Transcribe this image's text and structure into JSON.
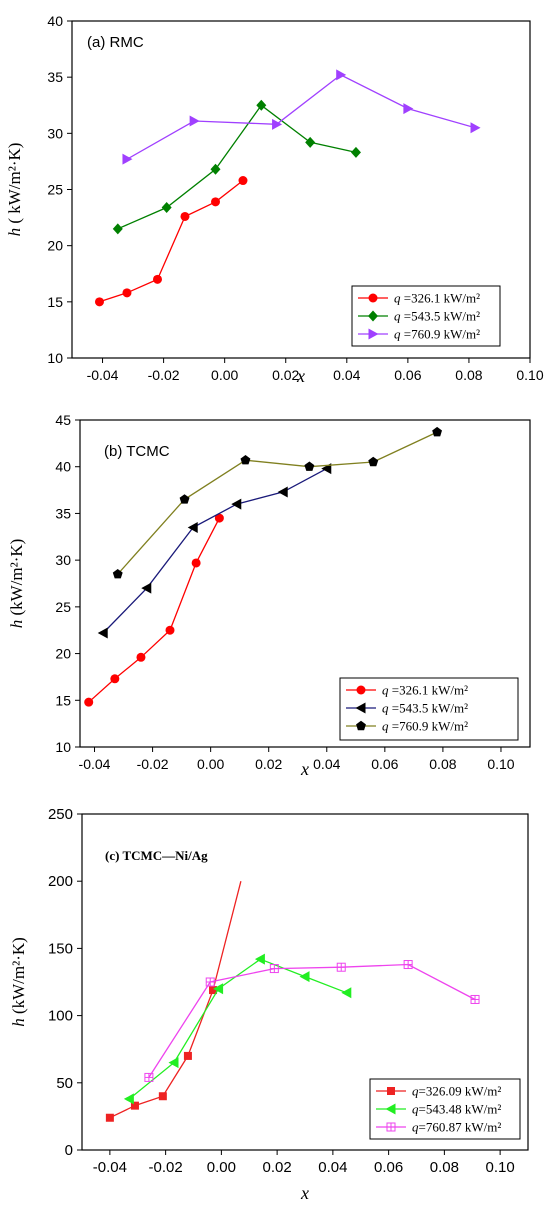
{
  "chart_data": [
    {
      "type": "line",
      "panel_label": "(a) RMC",
      "ylabel_var": "h",
      "ylabel_unit": " ( kW/m²·K)",
      "xlabel": "x",
      "xlim": [
        -0.05,
        0.1
      ],
      "ylim": [
        10,
        40
      ],
      "xticks": [
        "-0.04",
        "-0.02",
        "0.00",
        "0.02",
        "0.04",
        "0.06",
        "0.08",
        "0.10"
      ],
      "xtick_values": [
        -0.04,
        -0.02,
        0,
        0.02,
        0.04,
        0.06,
        0.08,
        0.1
      ],
      "yticks": [
        "10",
        "15",
        "20",
        "25",
        "30",
        "35",
        "40"
      ],
      "ytick_values": [
        10,
        15,
        20,
        25,
        30,
        35,
        40
      ],
      "legend_position": "bottom-right",
      "series": [
        {
          "legend_var": "q",
          "legend_text": " =326.1 kW/m²",
          "color": "#ff0000",
          "marker": "circle",
          "points": [
            [
              -0.041,
              15.0
            ],
            [
              -0.032,
              15.8
            ],
            [
              -0.022,
              17.0
            ],
            [
              -0.013,
              22.6
            ],
            [
              -0.003,
              23.9
            ],
            [
              0.006,
              25.8
            ]
          ]
        },
        {
          "legend_var": "q",
          "legend_text": " =543.5 kW/m²",
          "color": "#008000",
          "marker": "diamond",
          "points": [
            [
              -0.035,
              21.5
            ],
            [
              -0.019,
              23.4
            ],
            [
              -0.003,
              26.8
            ],
            [
              0.012,
              32.5
            ],
            [
              0.028,
              29.2
            ],
            [
              0.043,
              28.3
            ]
          ]
        },
        {
          "legend_var": "q",
          "legend_text": " =760.9 kW/m²",
          "color": "#a040ff",
          "marker": "triangle-right",
          "points": [
            [
              -0.032,
              27.7
            ],
            [
              -0.01,
              31.1
            ],
            [
              0.017,
              30.8
            ],
            [
              0.038,
              35.2
            ],
            [
              0.06,
              32.2
            ],
            [
              0.082,
              30.5
            ]
          ]
        }
      ]
    },
    {
      "type": "line",
      "panel_label": "(b) TCMC",
      "ylabel_var": "h",
      "ylabel_unit": " (kW/m²·K)",
      "xlabel": "x",
      "xlim": [
        -0.045,
        0.11
      ],
      "ylim": [
        10,
        45
      ],
      "xticks": [
        "-0.04",
        "-0.02",
        "0.00",
        "0.02",
        "0.04",
        "0.06",
        "0.08",
        "0.10"
      ],
      "xtick_values": [
        -0.04,
        -0.02,
        0,
        0.02,
        0.04,
        0.06,
        0.08,
        0.1
      ],
      "yticks": [
        "10",
        "15",
        "20",
        "25",
        "30",
        "35",
        "40",
        "45"
      ],
      "ytick_values": [
        10,
        15,
        20,
        25,
        30,
        35,
        40,
        45
      ],
      "legend_position": "bottom-right",
      "series": [
        {
          "legend_var": "q",
          "legend_text": " =326.1 kW/m²",
          "color": "#ff0000",
          "marker": "circle",
          "points": [
            [
              -0.042,
              14.8
            ],
            [
              -0.033,
              17.3
            ],
            [
              -0.024,
              19.6
            ],
            [
              -0.014,
              22.5
            ],
            [
              -0.005,
              29.7
            ],
            [
              0.003,
              34.5
            ]
          ]
        },
        {
          "legend_var": "q",
          "legend_text": " =543.5 kW/m²",
          "color": "#1a1a7a",
          "marker": "triangle-left",
          "points": [
            [
              -0.037,
              22.2
            ],
            [
              -0.022,
              27.0
            ],
            [
              -0.006,
              33.5
            ],
            [
              0.009,
              36.0
            ],
            [
              0.025,
              37.3
            ],
            [
              0.04,
              39.8
            ]
          ]
        },
        {
          "legend_var": "q",
          "legend_text": " =760.9 kW/m²",
          "color": "#808020",
          "marker": "pentagon",
          "points": [
            [
              -0.032,
              28.5
            ],
            [
              -0.009,
              36.5
            ],
            [
              0.012,
              40.7
            ],
            [
              0.034,
              40.0
            ],
            [
              0.056,
              40.5
            ],
            [
              0.078,
              43.7
            ]
          ]
        }
      ]
    },
    {
      "type": "line",
      "panel_label": "(c) TCMC—Ni/Ag",
      "ylabel_var": "h",
      "ylabel_unit": " (kW/m²·K)",
      "xlabel": "x",
      "xlim": [
        -0.05,
        0.11
      ],
      "ylim": [
        0,
        250
      ],
      "xticks": [
        "-0.04",
        "-0.02",
        "0.00",
        "0.02",
        "0.04",
        "0.06",
        "0.08",
        "0.10"
      ],
      "xtick_values": [
        -0.04,
        -0.02,
        0,
        0.02,
        0.04,
        0.06,
        0.08,
        0.1
      ],
      "yticks": [
        "0",
        "50",
        "100",
        "150",
        "200",
        "250"
      ],
      "ytick_values": [
        0,
        50,
        100,
        150,
        200,
        250
      ],
      "legend_position": "bottom-right",
      "series": [
        {
          "legend_var": "q",
          "legend_text": "=326.09 kW/m²",
          "color": "#ee2222",
          "marker": "square",
          "points": [
            [
              -0.04,
              24
            ],
            [
              -0.031,
              33
            ],
            [
              -0.021,
              40
            ],
            [
              -0.012,
              70
            ],
            [
              -0.003,
              119
            ],
            [
              0.007,
              200
            ]
          ]
        },
        {
          "legend_var": "q",
          "legend_text": "=543.48 kW/m²",
          "color": "#22ee22",
          "marker": "triangle-left",
          "points": [
            [
              -0.033,
              38
            ],
            [
              -0.017,
              65
            ],
            [
              -0.001,
              120
            ],
            [
              0.014,
              142
            ],
            [
              0.03,
              129
            ],
            [
              0.045,
              117
            ]
          ]
        },
        {
          "legend_var": "q",
          "legend_text": "=760.87 kW/m²",
          "color": "#ee44ee",
          "marker": "square-cross",
          "points": [
            [
              -0.026,
              54
            ],
            [
              -0.004,
              125
            ],
            [
              0.019,
              135
            ],
            [
              0.043,
              136
            ],
            [
              0.067,
              138
            ],
            [
              0.091,
              112
            ]
          ]
        }
      ]
    }
  ]
}
